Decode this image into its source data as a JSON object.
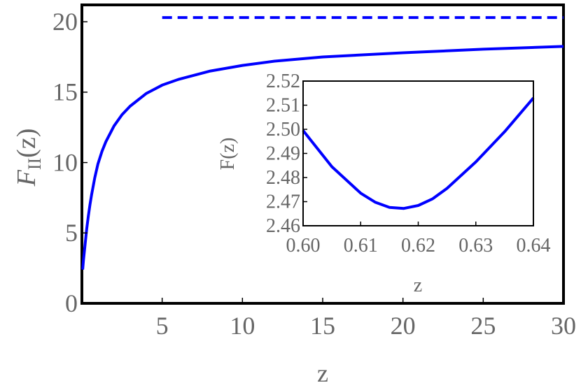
{
  "chart_data": [
    {
      "type": "line",
      "title": "",
      "xlabel": "z",
      "ylabel": "F",
      "ylabel_subscript": "II",
      "ylabel_suffix": "(z)",
      "xlim": [
        0,
        30
      ],
      "ylim": [
        0,
        21
      ],
      "x_ticks": [
        5,
        10,
        15,
        20,
        25,
        30
      ],
      "y_ticks": [
        0,
        5,
        10,
        15,
        20
      ],
      "grid": false,
      "series": [
        {
          "style": "solid",
          "color": "#0000ff",
          "x": [
            0.05,
            0.1,
            0.2,
            0.3,
            0.4,
            0.5,
            0.6,
            0.8,
            1.0,
            1.25,
            1.5,
            2.0,
            2.5,
            3.0,
            4.0,
            5.0,
            6.0,
            8.0,
            10.0,
            12.0,
            15.0,
            20.0,
            25.0,
            30.0
          ],
          "y": [
            2.4,
            3.1,
            4.2,
            5.3,
            6.2,
            7.0,
            7.7,
            8.9,
            9.9,
            10.8,
            11.5,
            12.6,
            13.4,
            14.0,
            14.9,
            15.5,
            15.9,
            16.5,
            16.9,
            17.2,
            17.5,
            17.8,
            18.05,
            18.25
          ]
        },
        {
          "style": "dashed",
          "color": "#0000ff",
          "x": [
            5,
            30
          ],
          "y": [
            20.3,
            20.3
          ]
        }
      ]
    },
    {
      "type": "line",
      "title": "",
      "xlabel": "z",
      "ylabel": "F(z)",
      "xlim": [
        0.6,
        0.64
      ],
      "ylim": [
        2.46,
        2.52
      ],
      "x_ticks": [
        "0.60",
        "0.61",
        "0.62",
        "0.63",
        "0.64"
      ],
      "y_ticks": [
        "2.46",
        "2.47",
        "2.48",
        "2.49",
        "2.50",
        "2.51",
        "2.52"
      ],
      "grid": false,
      "series": [
        {
          "style": "solid",
          "color": "#0000ff",
          "x": [
            0.6,
            0.605,
            0.61,
            0.6125,
            0.615,
            0.6175,
            0.62,
            0.6225,
            0.625,
            0.63,
            0.635,
            0.64
          ],
          "y": [
            2.4995,
            2.4845,
            2.4735,
            2.4698,
            2.4676,
            2.4672,
            2.4684,
            2.4712,
            2.4755,
            2.4865,
            2.499,
            2.513
          ]
        }
      ]
    }
  ]
}
